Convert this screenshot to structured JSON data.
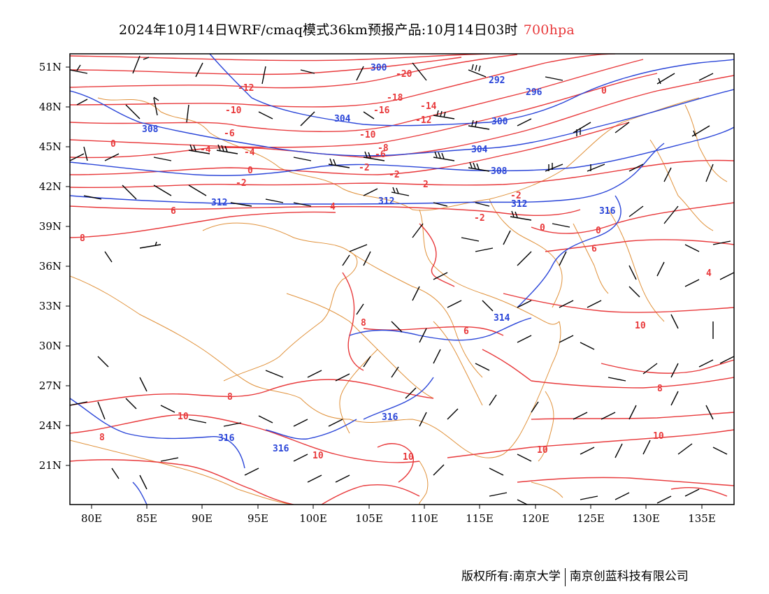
{
  "title": {
    "text": "2024年10月14日WRF/cmaq模式36km预报产品:10月14日03时",
    "level": "700hpa"
  },
  "axes": {
    "lat_labels": [
      "51N",
      "48N",
      "45N",
      "42N",
      "39N",
      "36N",
      "33N",
      "30N",
      "27N",
      "24N",
      "21N"
    ],
    "lon_labels": [
      "80E",
      "85E",
      "90E",
      "95E",
      "100E",
      "105E",
      "110E",
      "115E",
      "120E",
      "125E",
      "130E",
      "135E"
    ]
  },
  "contour_labels": {
    "temperature_red": [
      "-20",
      "-18",
      "-16",
      "-14",
      "-12",
      "-12",
      "-10",
      "-10",
      "-8",
      "-6",
      "-6",
      "-4",
      "-4",
      "-2",
      "-2",
      "-2",
      "-2",
      "0",
      "0",
      "0",
      "0",
      "0",
      "-2",
      "2",
      "4",
      "6",
      "6",
      "8",
      "6",
      "4",
      "8",
      "8",
      "8",
      "8",
      "10",
      "10",
      "10",
      "10",
      "10",
      "10"
    ],
    "height_blue": [
      "300",
      "292",
      "296",
      "304",
      "300",
      "304",
      "308",
      "308",
      "312",
      "312",
      "312",
      "316",
      "314",
      "316",
      "316",
      "316"
    ]
  },
  "footer": {
    "left": "版权所有:南京大学",
    "right": "南京创蓝科技有限公司"
  },
  "colors": {
    "temperature": "#e8393b",
    "height": "#2a45d8",
    "border": "#e0913a",
    "wind": "#000000"
  }
}
